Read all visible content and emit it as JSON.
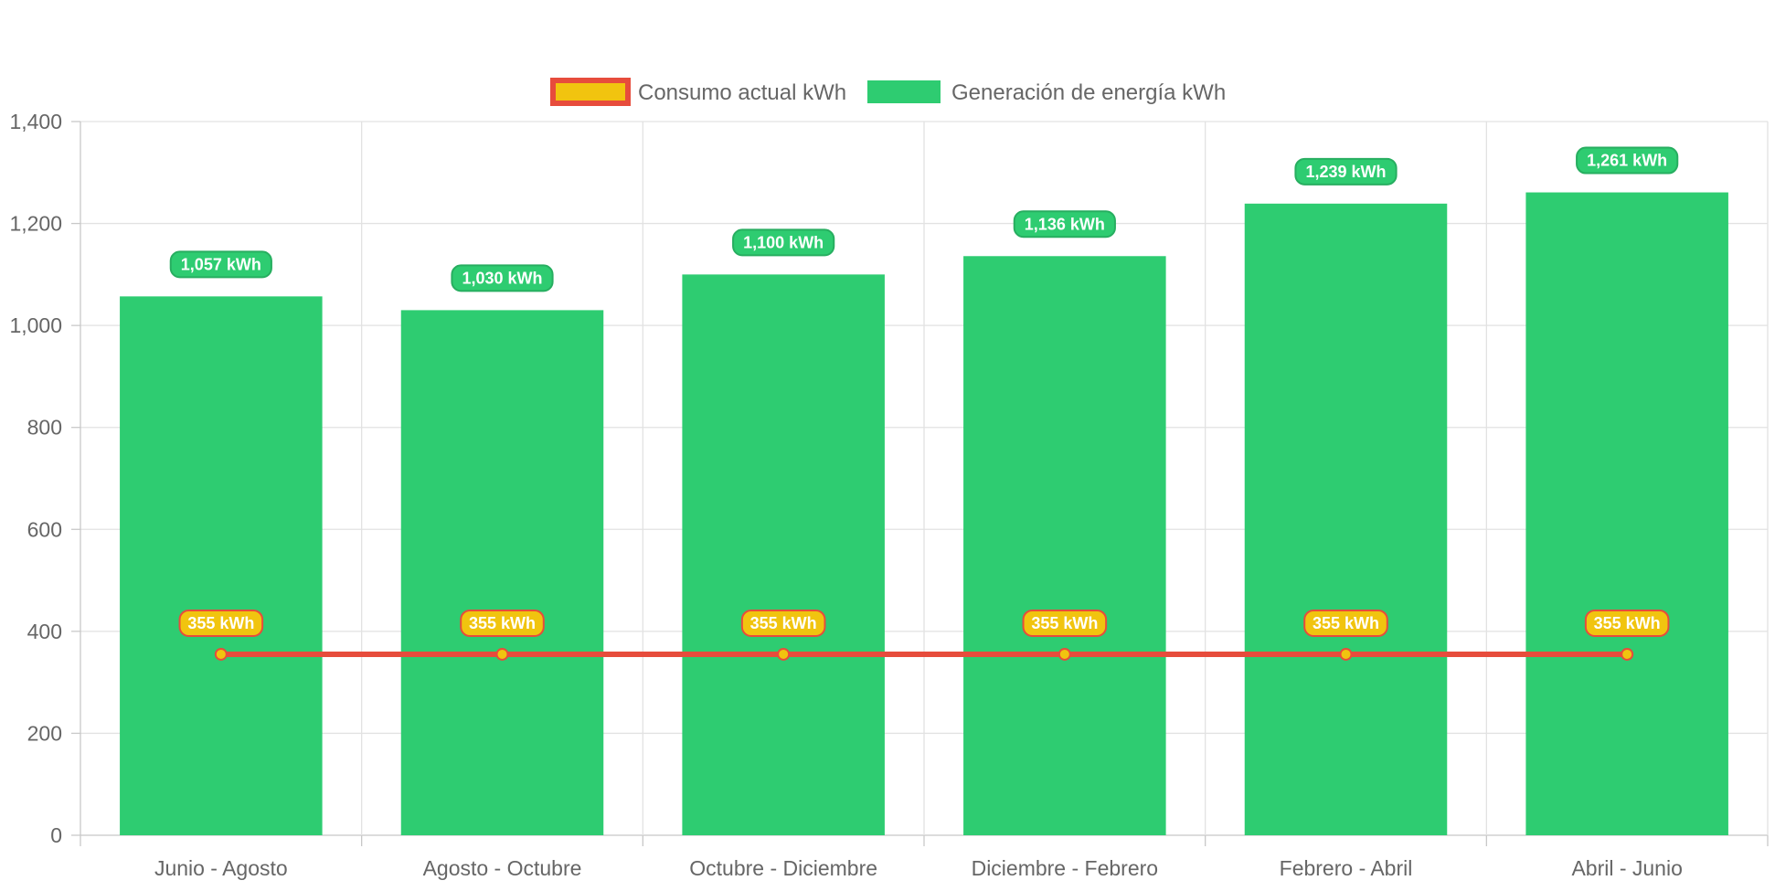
{
  "chart_data": {
    "type": "bar",
    "categories": [
      "Junio - Agosto",
      "Agosto - Octubre",
      "Octubre - Diciembre",
      "Diciembre - Febrero",
      "Febrero - Abril",
      "Abril - Junio"
    ],
    "series": [
      {
        "name": "Consumo actual kWh",
        "type": "line",
        "values": [
          355,
          355,
          355,
          355,
          355,
          355
        ],
        "labels": [
          "355 kWh",
          "355 kWh",
          "355 kWh",
          "355 kWh",
          "355 kWh",
          "355 kWh"
        ],
        "color": "#e74c3c",
        "fill_color": "#f1c40f"
      },
      {
        "name": "Generación de energía kWh",
        "type": "bar",
        "values": [
          1057,
          1030,
          1100,
          1136,
          1239,
          1261
        ],
        "labels": [
          "1,057 kWh",
          "1,030 kWh",
          "1,100 kWh",
          "1,136 kWh",
          "1,239 kWh",
          "1,261 kWh"
        ],
        "color": "#2ecc71",
        "border_color": "#27ae60"
      }
    ],
    "y_ticks": [
      "0",
      "200",
      "400",
      "600",
      "800",
      "1,000",
      "1,200",
      "1,400"
    ],
    "ylim": [
      0,
      1400
    ],
    "legend_position": "top-center",
    "grid": true,
    "title": "",
    "xlabel": "",
    "ylabel": ""
  }
}
